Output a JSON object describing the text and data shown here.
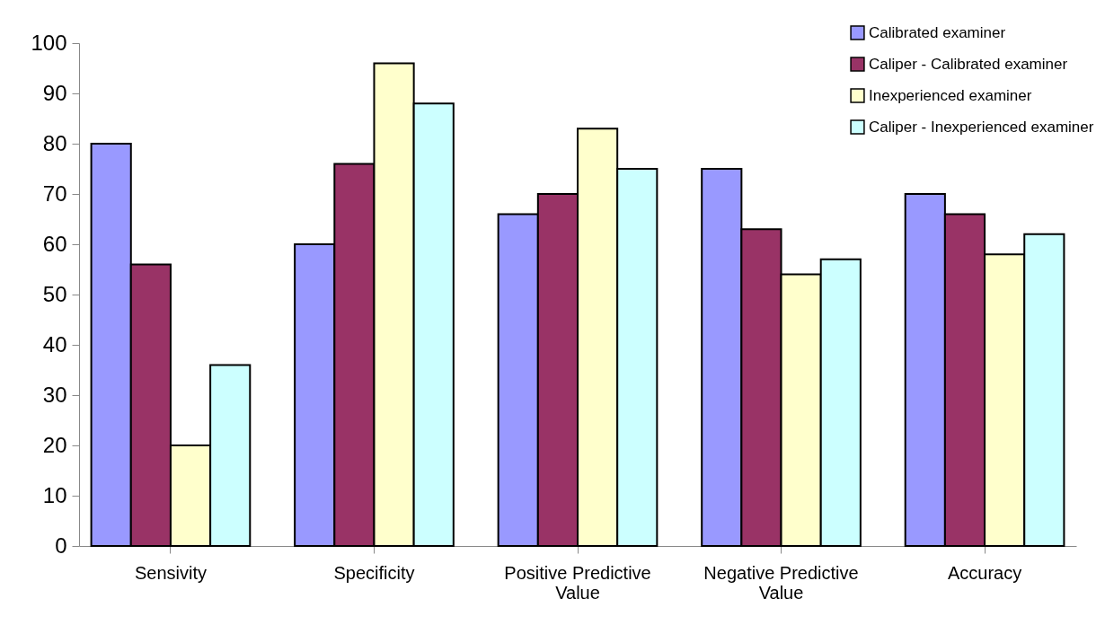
{
  "chart_data": {
    "type": "bar",
    "categories": [
      "Sensivity",
      "Specificity",
      "Positive Predictive Value",
      "Negative Predictive Value",
      "Accuracy"
    ],
    "series": [
      {
        "name": "Calibrated examiner",
        "color": "#9999ff",
        "values": [
          80,
          60,
          66,
          75,
          70
        ]
      },
      {
        "name": "Caliper - Calibrated examiner",
        "color": "#993366",
        "values": [
          56,
          76,
          70,
          63,
          66
        ]
      },
      {
        "name": "Inexperienced examiner",
        "color": "#ffffcc",
        "values": [
          20,
          96,
          83,
          54,
          58
        ]
      },
      {
        "name": "Caliper - Inexperienced examiner",
        "color": "#ccffff",
        "values": [
          36,
          88,
          75,
          57,
          62
        ]
      }
    ],
    "ylim": [
      0,
      100
    ],
    "yticks": [
      0,
      10,
      20,
      30,
      40,
      50,
      60,
      70,
      80,
      90,
      100
    ],
    "grid": false,
    "legend": "top right"
  }
}
